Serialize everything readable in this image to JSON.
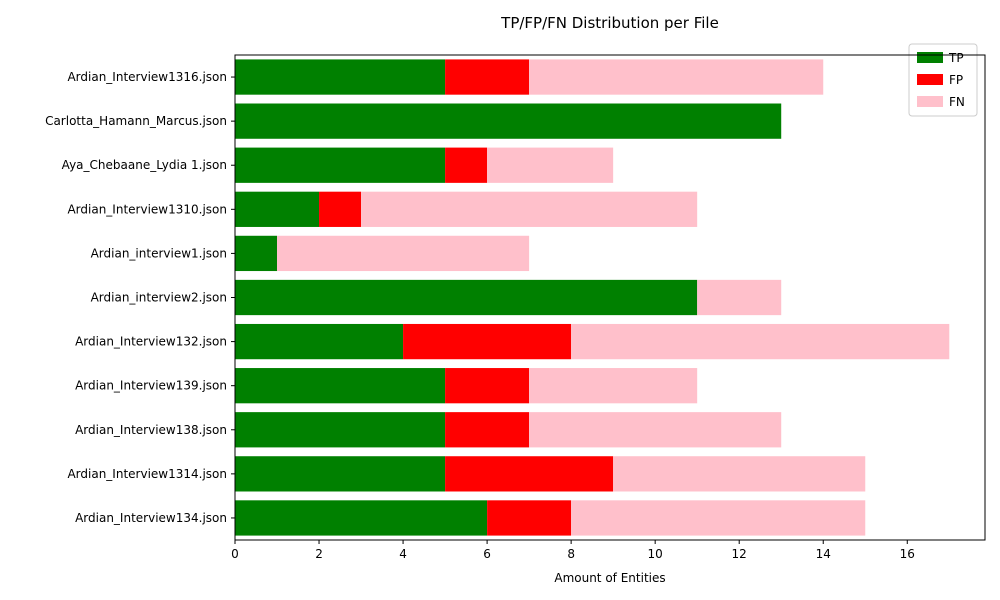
{
  "chart_data": {
    "type": "bar",
    "orientation": "horizontal",
    "stacked": true,
    "title": "TP/FP/FN Distribution per File",
    "xlabel": "Amount of Entities",
    "ylabel": "",
    "xlim": [
      0,
      17.85
    ],
    "xticks": [
      0,
      2,
      4,
      6,
      8,
      10,
      12,
      14,
      16
    ],
    "grid": false,
    "legend_position": "top-right",
    "categories": [
      "Ardian_Interview1316.json",
      "Carlotta_Hamann_Marcus.json",
      "Aya_Chebaane_Lydia 1.json",
      "Ardian_Interview1310.json",
      "Ardian_interview1.json",
      "Ardian_interview2.json",
      "Ardian_Interview132.json",
      "Ardian_Interview139.json",
      "Ardian_Interview138.json",
      "Ardian_Interview1314.json",
      "Ardian_Interview134.json"
    ],
    "series": [
      {
        "name": "TP",
        "color": "#008000",
        "values": [
          5,
          13,
          5,
          2,
          1,
          11,
          4,
          5,
          5,
          5,
          6
        ]
      },
      {
        "name": "FP",
        "color": "#ff0000",
        "values": [
          2,
          0,
          1,
          1,
          0,
          0,
          4,
          2,
          2,
          4,
          2
        ]
      },
      {
        "name": "FN",
        "color": "#ffc0cb",
        "values": [
          7,
          0,
          3,
          8,
          6,
          2,
          9,
          4,
          6,
          6,
          7
        ]
      }
    ]
  }
}
